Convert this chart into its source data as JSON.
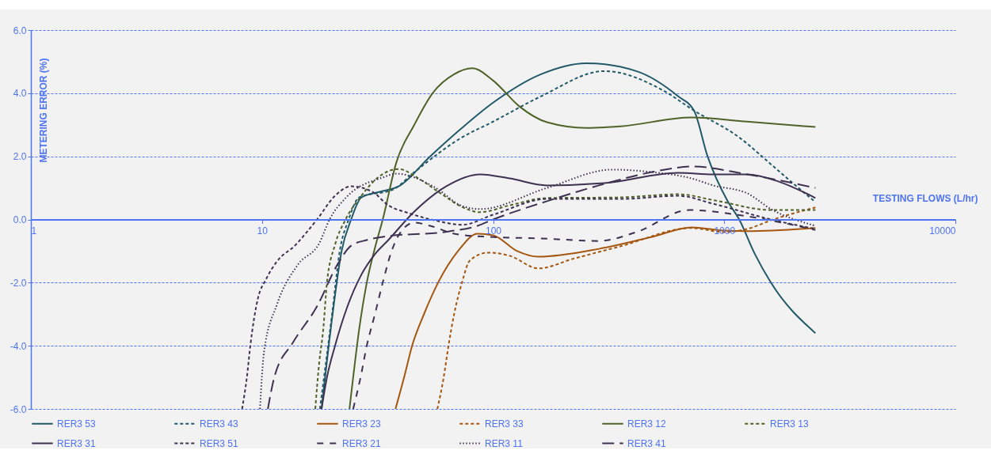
{
  "chart_data": {
    "type": "line",
    "xlabel": "TESTING FLOWS (L/hr)",
    "ylabel": "METERING ERROR (%)",
    "log": "x",
    "grid": "y",
    "legend": "bottom",
    "xlim": [
      1,
      10000
    ],
    "xticks": [
      1,
      10,
      100,
      1000,
      10000
    ],
    "ylim": [
      -6,
      6
    ],
    "yticks": [
      {
        "value": -6,
        "label": "-6.0"
      },
      {
        "value": -4,
        "label": "-4.0"
      },
      {
        "value": -2,
        "label": "-2.0"
      },
      {
        "value": 0,
        "label": "0.0"
      },
      {
        "value": 2,
        "label": "2.0"
      },
      {
        "value": 4,
        "label": "4.0"
      },
      {
        "value": 6,
        "label": "6.0"
      }
    ],
    "series": [
      {
        "name": "RER3 53",
        "color": "#215968",
        "line_style": "solid",
        "x": [
          18.1,
          20.2,
          22.1,
          24.3,
          26.9,
          33.3,
          39,
          53.4,
          73.3,
          100,
          161,
          253,
          416,
          632,
          740,
          847,
          1031,
          1161,
          1358,
          1592,
          2480
        ],
        "values": [
          -6,
          -3,
          -1,
          0,
          0.7,
          0.9,
          1.05,
          2,
          2.9,
          3.7,
          4.6,
          4.95,
          4.7,
          3.9,
          3.45,
          2,
          0.6,
          0,
          -1.1,
          -2,
          -3.6
        ]
      },
      {
        "name": "RER3 43",
        "color": "#215968",
        "line_style": "dashed",
        "x": [
          17.8,
          20.1,
          21.7,
          23.7,
          26.3,
          36.9,
          45.6,
          73.3,
          100,
          161,
          303,
          540,
          740,
          1161,
          1592,
          2018,
          2480
        ],
        "values": [
          -6,
          -3,
          -1,
          0,
          0.7,
          0.95,
          1.5,
          2.6,
          3.1,
          3.9,
          4.7,
          4.1,
          3.45,
          2.6,
          1.75,
          1.1,
          0.55
        ]
      },
      {
        "name": "RER3 23",
        "color": "#a5560f",
        "line_style": "solid",
        "x": [
          37.8,
          41.2,
          44.6,
          50.2,
          57.8,
          70.5,
          85.7,
          100,
          127,
          157,
          287,
          487,
          723,
          991,
          1257,
          2480
        ],
        "values": [
          -6,
          -5,
          -4,
          -3,
          -2,
          -1,
          -0.45,
          -0.5,
          -1,
          -1.18,
          -0.93,
          -0.55,
          -0.25,
          -0.35,
          -0.37,
          -0.27
        ]
      },
      {
        "name": "RER3 33",
        "color": "#a5560f",
        "line_style": "dashed",
        "x": [
          57.4,
          61.1,
          64.1,
          67.8,
          73.3,
          79.3,
          95.1,
          118,
          157,
          221,
          355,
          723,
          991,
          1257,
          1630,
          2480
        ],
        "values": [
          -6,
          -5,
          -4,
          -3,
          -2,
          -1.3,
          -1.05,
          -1.15,
          -1.55,
          -1.25,
          -0.85,
          -0.27,
          -0.4,
          -0.3,
          0,
          0.38
        ]
      },
      {
        "name": "RER3 12",
        "color": "#4f6228",
        "line_style": "solid",
        "x": [
          23.9,
          24.8,
          26.3,
          28.4,
          30.8,
          33.3,
          38.1,
          45.6,
          54.7,
          67.8,
          81.2,
          100,
          130,
          171,
          253,
          355,
          723,
          1257,
          2480
        ],
        "values": [
          -6,
          -5,
          -3.5,
          -2,
          -0.9,
          0,
          1.8,
          3,
          4,
          4.6,
          4.79,
          4.4,
          3.58,
          3.08,
          2.9,
          2.95,
          3.23,
          3.1,
          2.93
        ]
      },
      {
        "name": "RER3 13",
        "color": "#4f6228",
        "line_style": "dashed",
        "x": [
          17,
          17.7,
          18.4,
          19.1,
          20.7,
          23,
          26.9,
          32,
          39,
          47.5,
          59.2,
          73.3,
          87.8,
          118,
          171,
          355,
          632,
          916,
          1592,
          2480
        ],
        "values": [
          -6,
          -4.5,
          -3.5,
          -2,
          -0.8,
          0,
          0.75,
          1.35,
          1.6,
          1.3,
          0.83,
          0.4,
          0.23,
          0.45,
          0.68,
          0.7,
          0.8,
          0.6,
          0.3,
          0.3
        ]
      },
      {
        "name": "RER3 31",
        "color": "#3f3151",
        "line_style": "solid",
        "x": [
          18.1,
          19.1,
          20.7,
          23.3,
          26.9,
          30.8,
          35.2,
          45.6,
          62.6,
          87.8,
          118,
          171,
          303,
          632,
          895,
          1257,
          1722,
          2480
        ],
        "values": [
          -6,
          -5,
          -4,
          -2.8,
          -1.75,
          -1.1,
          -0.65,
          0.25,
          1.05,
          1.43,
          1.3,
          1.08,
          1.15,
          1.48,
          1.43,
          1.43,
          1.2,
          0.68
        ]
      },
      {
        "name": "RER3 51",
        "color": "#3f3151",
        "line_style": "dashed",
        "x": [
          8.2,
          8.6,
          8.9,
          9.6,
          10.4,
          11.6,
          14,
          15.5,
          17.3,
          20.7,
          24.3,
          30,
          35.2,
          43.2,
          57.8,
          73.3,
          100,
          171,
          355,
          632,
          895,
          1592,
          2480
        ],
        "values": [
          -6,
          -5,
          -4,
          -2.5,
          -1.9,
          -1.33,
          -0.8,
          -0.43,
          0,
          0.75,
          1.05,
          0.88,
          0.45,
          0.2,
          -0.05,
          -0.17,
          0.15,
          0.65,
          0.65,
          0.75,
          0.5,
          0,
          -0.3
        ]
      },
      {
        "name": "RER3 21",
        "color": "#3f3151",
        "line_style": "loosely dashed",
        "x": [
          24.8,
          26.7,
          28.4,
          30.8,
          33.3,
          36,
          39,
          45.6,
          53.4,
          67.8,
          95.1,
          161,
          287,
          416,
          706,
          1257,
          2480
        ],
        "values": [
          -6,
          -5,
          -4,
          -3,
          -2,
          -1.1,
          -0.5,
          -0.1,
          -0.2,
          -0.45,
          -0.55,
          -0.6,
          -0.68,
          -0.4,
          0.3,
          0.1,
          -0.33
        ]
      },
      {
        "name": "RER3 11",
        "color": "#3f3151",
        "line_style": "dotted",
        "x": [
          9.8,
          10.2,
          11.6,
          14.3,
          17.7,
          19.6,
          23,
          33.3,
          38.1,
          56.5,
          73.3,
          87.8,
          171,
          328,
          487,
          723,
          895,
          1257,
          1592,
          2480
        ],
        "values": [
          -6,
          -4.2,
          -2.7,
          -1.43,
          -0.75,
          0,
          0.68,
          1.33,
          1.45,
          1,
          0.43,
          0.33,
          1,
          1.58,
          1.5,
          1.3,
          1.08,
          0.83,
          0.33,
          -0.2
        ]
      },
      {
        "name": "RER3 41",
        "color": "#3f3151",
        "line_style": "long dashed",
        "x": [
          10.6,
          11.3,
          13.6,
          17.3,
          21.2,
          24.3,
          28.4,
          33.3,
          64.1,
          85.7,
          100,
          171,
          287,
          527,
          723,
          1257,
          2480
        ],
        "values": [
          -6,
          -5,
          -3.9,
          -2.75,
          -1.43,
          -0.83,
          -0.65,
          -0.55,
          -0.38,
          -0.2,
          0,
          0.58,
          1.08,
          1.55,
          1.68,
          1.43,
          1
        ]
      }
    ]
  }
}
